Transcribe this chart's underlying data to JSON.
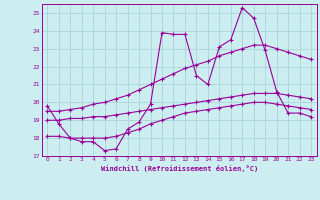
{
  "bg_color": "#cceef0",
  "grid_color": "#aad4d8",
  "line_color": "#990099",
  "xlabel": "Windchill (Refroidissement éolien,°C)",
  "ylim": [
    17,
    25.5
  ],
  "xlim": [
    -0.5,
    23.5
  ],
  "yticks": [
    17,
    18,
    19,
    20,
    21,
    22,
    23,
    24,
    25
  ],
  "xticks": [
    0,
    1,
    2,
    3,
    4,
    5,
    6,
    7,
    8,
    9,
    10,
    11,
    12,
    13,
    14,
    15,
    16,
    17,
    18,
    19,
    20,
    21,
    22,
    23
  ],
  "line1_x": [
    0,
    1,
    2,
    3,
    4,
    5,
    6,
    7,
    8,
    9,
    10,
    11,
    12,
    13,
    14,
    15,
    16,
    17,
    18,
    19,
    20,
    21,
    22,
    23
  ],
  "line1_y": [
    19.8,
    18.8,
    18.0,
    17.8,
    17.8,
    17.3,
    17.4,
    18.5,
    18.9,
    19.9,
    23.9,
    23.8,
    23.8,
    21.5,
    21.0,
    23.1,
    23.5,
    25.3,
    24.7,
    22.9,
    20.6,
    19.4,
    19.4,
    19.2
  ],
  "line2_x": [
    0,
    1,
    2,
    3,
    4,
    5,
    6,
    7,
    8,
    9,
    10,
    11,
    12,
    13,
    14,
    15,
    16,
    17,
    18,
    19,
    20,
    21,
    22,
    23
  ],
  "line2_y": [
    18.1,
    18.1,
    18.0,
    18.0,
    18.0,
    18.0,
    18.1,
    18.3,
    18.5,
    18.8,
    19.0,
    19.2,
    19.4,
    19.5,
    19.6,
    19.7,
    19.8,
    19.9,
    20.0,
    20.0,
    19.9,
    19.8,
    19.7,
    19.6
  ],
  "line3_x": [
    0,
    1,
    2,
    3,
    4,
    5,
    6,
    7,
    8,
    9,
    10,
    11,
    12,
    13,
    14,
    15,
    16,
    17,
    18,
    19,
    20,
    21,
    22,
    23
  ],
  "line3_y": [
    19.0,
    19.0,
    19.1,
    19.1,
    19.2,
    19.2,
    19.3,
    19.4,
    19.5,
    19.6,
    19.7,
    19.8,
    19.9,
    20.0,
    20.1,
    20.2,
    20.3,
    20.4,
    20.5,
    20.5,
    20.5,
    20.4,
    20.3,
    20.2
  ],
  "line4_x": [
    0,
    1,
    2,
    3,
    4,
    5,
    6,
    7,
    8,
    9,
    10,
    11,
    12,
    13,
    14,
    15,
    16,
    17,
    18,
    19,
    20,
    21,
    22,
    23
  ],
  "line4_y": [
    19.5,
    19.5,
    19.6,
    19.7,
    19.9,
    20.0,
    20.2,
    20.4,
    20.7,
    21.0,
    21.3,
    21.6,
    21.9,
    22.1,
    22.3,
    22.6,
    22.8,
    23.0,
    23.2,
    23.2,
    23.0,
    22.8,
    22.6,
    22.4
  ]
}
